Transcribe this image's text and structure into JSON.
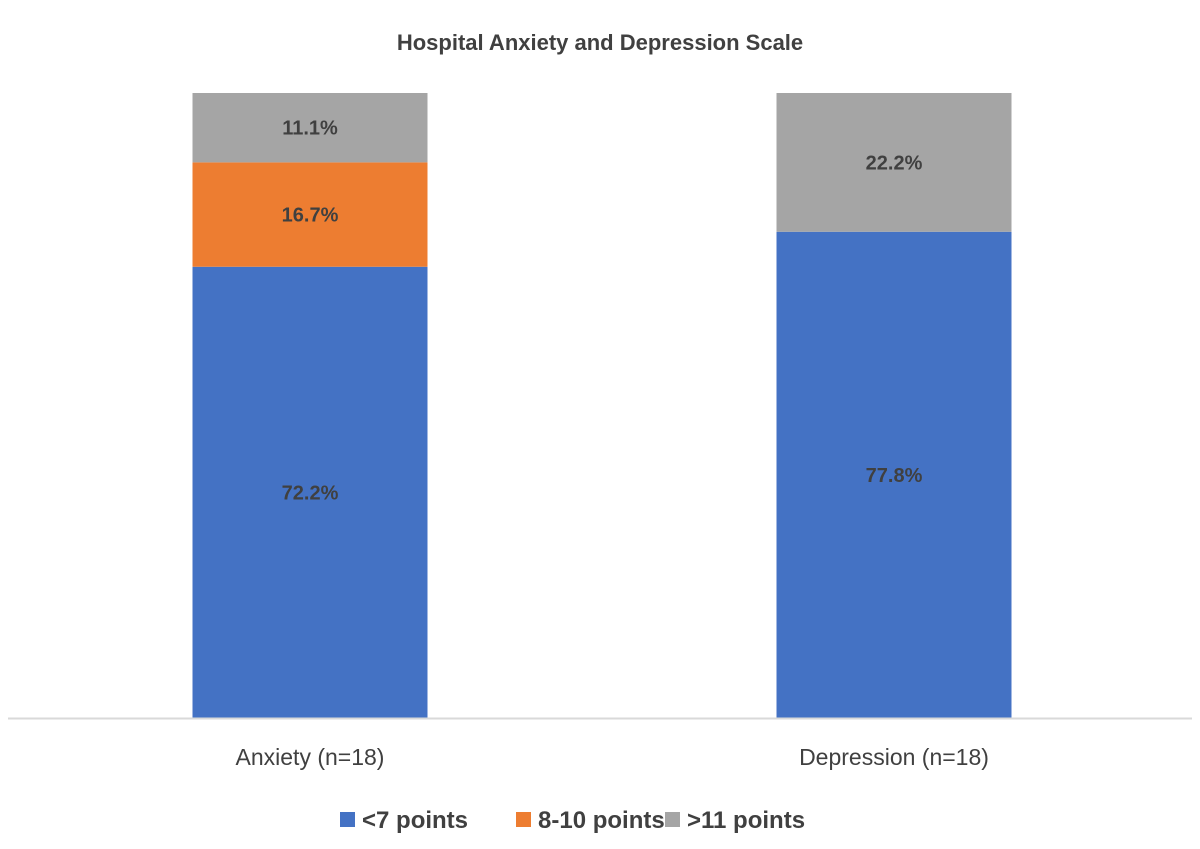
{
  "chart_data": {
    "type": "bar",
    "stacked": true,
    "title": "Hospital Anxiety and Depression Scale",
    "xlabel": "",
    "ylabel": "",
    "ylim": [
      0,
      100
    ],
    "unit": "%",
    "grid": false,
    "categories": [
      "Anxiety (n=18)",
      "Depression (n=18)"
    ],
    "series": [
      {
        "name": "<7 points",
        "color": "#4472C4",
        "values": [
          72.2,
          77.8
        ],
        "labels": [
          "72.2%",
          "77.8%"
        ]
      },
      {
        "name": "8-10 points",
        "color": "#ED7D31",
        "values": [
          16.7,
          0
        ],
        "labels": [
          "16.7%",
          ""
        ]
      },
      {
        "name": ">11 points",
        "color": "#A5A5A5",
        "values": [
          11.1,
          22.2
        ],
        "labels": [
          "11.1%",
          "22.2%"
        ]
      }
    ],
    "legend_position": "bottom"
  }
}
